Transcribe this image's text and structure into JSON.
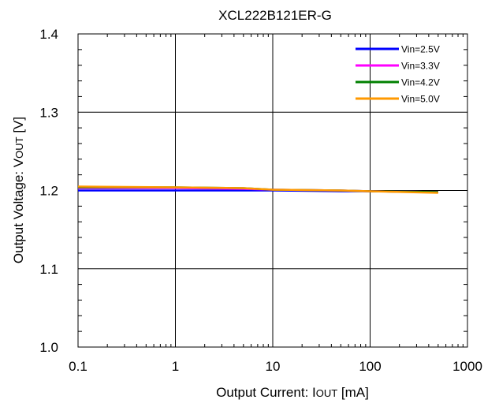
{
  "chart_data": {
    "type": "line",
    "title": "XCL222B121ER-G",
    "xlabel": {
      "prefix": "Output Current: I",
      "sub": "OUT",
      "suffix": " [mA]"
    },
    "ylabel": {
      "prefix": "Output Voltage: V",
      "sub": "OUT",
      "suffix": " [V]"
    },
    "x_scale": "log",
    "xlim": [
      0.1,
      1000
    ],
    "ylim": [
      1.0,
      1.4
    ],
    "x_ticks": [
      {
        "value": 0.1,
        "label": "0.1"
      },
      {
        "value": 1,
        "label": "1"
      },
      {
        "value": 10,
        "label": "10"
      },
      {
        "value": 100,
        "label": "100"
      },
      {
        "value": 1000,
        "label": "1000"
      }
    ],
    "y_ticks": [
      {
        "value": 1.0,
        "label": "1.0"
      },
      {
        "value": 1.1,
        "label": "1.1"
      },
      {
        "value": 1.2,
        "label": "1.2"
      },
      {
        "value": 1.3,
        "label": "1.3"
      },
      {
        "value": 1.4,
        "label": "1.4"
      }
    ],
    "grid": true,
    "legend_position": "top-right",
    "series": [
      {
        "name": "Vin=2.5V",
        "color": "#0000ff",
        "points": [
          [
            0.1,
            1.2
          ],
          [
            1,
            1.2
          ],
          [
            5,
            1.2
          ],
          [
            10,
            1.2
          ],
          [
            50,
            1.199
          ],
          [
            100,
            1.199
          ],
          [
            500,
            1.198
          ]
        ]
      },
      {
        "name": "Vin=3.3V",
        "color": "#ff00ff",
        "points": [
          [
            0.1,
            1.203
          ],
          [
            1,
            1.203
          ],
          [
            5,
            1.202
          ],
          [
            10,
            1.201
          ],
          [
            50,
            1.2
          ],
          [
            100,
            1.199
          ],
          [
            500,
            1.198
          ]
        ]
      },
      {
        "name": "Vin=4.2V",
        "color": "#008000",
        "points": [
          [
            0.1,
            1.204
          ],
          [
            1,
            1.204
          ],
          [
            5,
            1.203
          ],
          [
            10,
            1.201
          ],
          [
            50,
            1.2
          ],
          [
            100,
            1.199
          ],
          [
            500,
            1.198
          ]
        ]
      },
      {
        "name": "Vin=5.0V",
        "color": "#ff9900",
        "points": [
          [
            0.1,
            1.205
          ],
          [
            1,
            1.204
          ],
          [
            5,
            1.203
          ],
          [
            10,
            1.201
          ],
          [
            50,
            1.2
          ],
          [
            100,
            1.199
          ],
          [
            500,
            1.197
          ]
        ]
      }
    ]
  }
}
